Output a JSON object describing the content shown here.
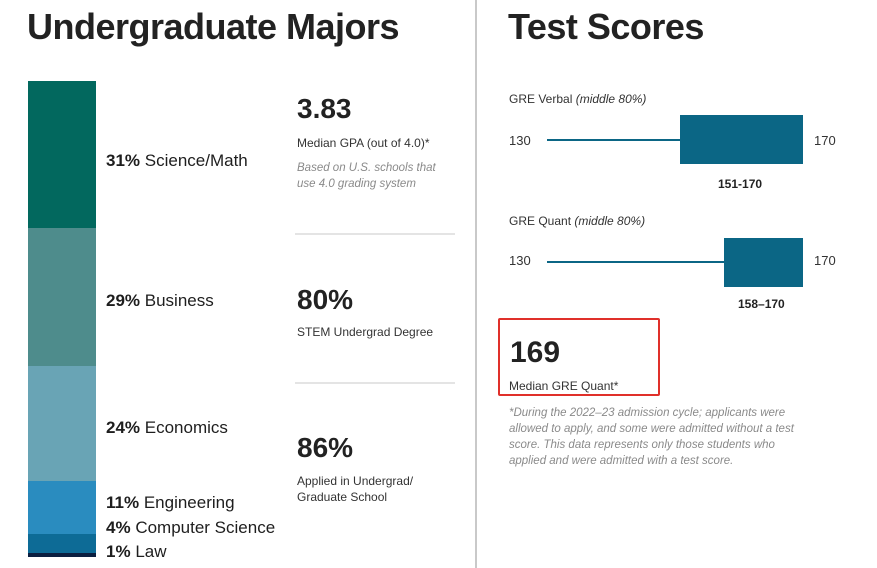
{
  "left": {
    "title": "Undergraduate Majors",
    "segments": [
      {
        "pct": "31%",
        "name": "Science/Math",
        "color": "#02685e"
      },
      {
        "pct": "29%",
        "name": "Business",
        "color": "#4e8c8c"
      },
      {
        "pct": "24%",
        "name": "Economics",
        "color": "#69a4b5"
      },
      {
        "pct": "11%",
        "name": "Engineering",
        "color": "#2a8cbf"
      },
      {
        "pct": "4%",
        "name": "Computer Science",
        "color": "#0d6b96"
      },
      {
        "pct": "1%",
        "name": "Law",
        "color": "#0b1f40"
      }
    ]
  },
  "stats": [
    {
      "value": "3.83",
      "label": "Median GPA (out of 4.0)*",
      "note": "Based on U.S. schools that use 4.0 grading system"
    },
    {
      "value": "80%",
      "label": "STEM Undergrad Degree"
    },
    {
      "value": "86%",
      "label": "Applied in Undergrad/ Graduate School"
    }
  ],
  "right": {
    "title": "Test Scores",
    "verbal": {
      "title_main": "GRE Verbal",
      "title_ital": "(middle 80%)",
      "min": "130",
      "max": "170",
      "range": "151-170"
    },
    "quant": {
      "title_main": "GRE Quant",
      "title_ital": "(middle 80%)",
      "min": "130",
      "max": "170",
      "range": "158–170"
    },
    "median": {
      "value": "169",
      "label": "Median GRE Quant*"
    },
    "footnote": "*During the 2022–23 admission cycle; applicants were allowed to apply, and some were admitted without a test score. This data represents only those students who applied and were admitted with a test score."
  },
  "colors": {
    "gre_bar": "#0b6685",
    "highlight_border": "#e0302a"
  }
}
